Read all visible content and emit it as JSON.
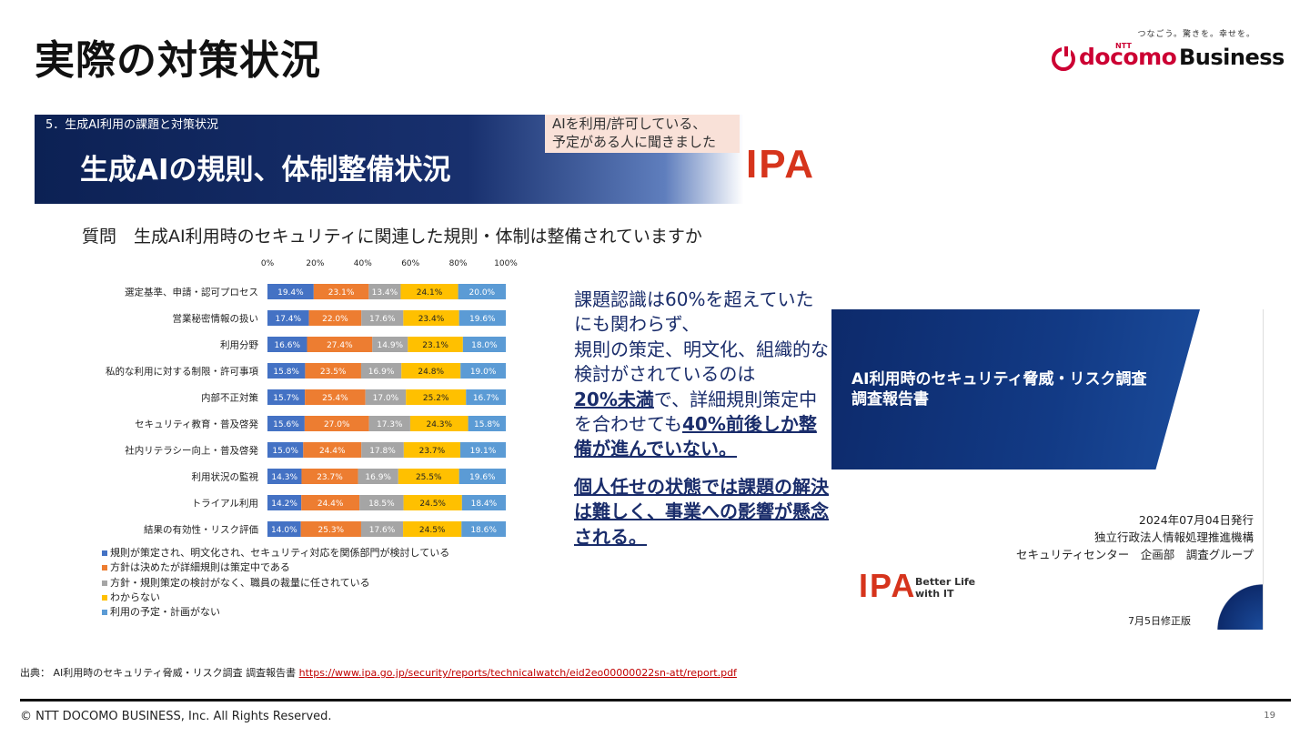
{
  "slide": {
    "title": "実際の対策状況",
    "page_number": "19",
    "copyright": "© NTT DOCOMO BUSINESS, Inc. All Rights Reserved."
  },
  "logo": {
    "tagline": "つなごう。驚きを。幸せを。",
    "ntt": "NTT",
    "docomo": "docomo",
    "business": "Business"
  },
  "banner": {
    "section": "5．生成AI利用の課題と対策状況",
    "title": "生成AIの規則、体制整備状況",
    "note_line1": "AIを利用/許可している、",
    "note_line2": "予定がある人に聞きました",
    "ipa": "IPA"
  },
  "question": "質問　生成AI利用時のセキュリティに関連した規則・体制は整備されていますか",
  "chart_data": {
    "type": "bar",
    "orientation": "horizontal",
    "stacked": true,
    "xlim": [
      0,
      100
    ],
    "xticks": [
      "0%",
      "20%",
      "40%",
      "60%",
      "80%",
      "100%"
    ],
    "categories": [
      "選定基準、申請・認可プロセス",
      "営業秘密情報の扱い",
      "利用分野",
      "私的な利用に対する制限・許可事項",
      "内部不正対策",
      "セキュリティ教育・普及啓発",
      "社内リテラシー向上・普及啓発",
      "利用状況の監視",
      "トライアル利用",
      "結果の有効性・リスク評価"
    ],
    "series": [
      {
        "name": "規則が策定され、明文化され、セキュリティ対応を関係部門が検討している",
        "color": "#4472c4",
        "values": [
          19.4,
          17.4,
          16.6,
          15.8,
          15.7,
          15.6,
          15.0,
          14.3,
          14.2,
          14.0
        ]
      },
      {
        "name": "方針は決めたが詳細規則は策定中である",
        "color": "#ed7d31",
        "values": [
          23.1,
          22.0,
          27.4,
          23.5,
          25.4,
          27.0,
          24.4,
          23.7,
          24.4,
          25.3
        ]
      },
      {
        "name": "方針・規則策定の検討がなく、職員の裁量に任されている",
        "color": "#a5a5a5",
        "values": [
          13.4,
          17.6,
          14.9,
          16.9,
          17.0,
          17.3,
          17.8,
          16.9,
          18.5,
          17.6
        ]
      },
      {
        "name": "わからない",
        "color": "#ffc000",
        "values": [
          24.1,
          23.4,
          23.1,
          24.8,
          25.2,
          24.3,
          23.7,
          25.5,
          24.5,
          24.5
        ]
      },
      {
        "name": "利用の予定・計画がない",
        "color": "#5b9bd5",
        "values": [
          20.0,
          19.6,
          18.0,
          19.0,
          16.7,
          15.8,
          19.1,
          19.6,
          18.4,
          18.6
        ]
      }
    ]
  },
  "commentary": {
    "line1": "課題認識は60%を超えていたにも関わらず、",
    "line2": "規則の策定、明文化、組織的な検討がされているのは",
    "line3_em": "20%未満",
    "line3_rest": "で、詳細規則策定中を合わせても",
    "line4_em": "40%前後しか整備が進んでいない。",
    "strong": "個人任せの状態では課題の解決は難しく、事業への影響が懸念される。"
  },
  "report": {
    "title_line1": "AI利用時のセキュリティ脅威・リスク調査",
    "title_line2": "調査報告書",
    "date": "2024年07月04日発行",
    "org": "独立行政法人情報処理推進機構",
    "dept": "セキュリティセンター　企画部　調査グループ",
    "ipa": "IPA",
    "tagline_line1": "Better Life",
    "tagline_line2": "with IT",
    "revision": "7月5日修正版"
  },
  "source": {
    "label": "出典：  AI利用時のセキュリティ脅威・リスク調査 調査報告書",
    "url": "https://www.ipa.go.jp/security/reports/technicalwatch/eid2eo00000022sn-att/report.pdf"
  }
}
